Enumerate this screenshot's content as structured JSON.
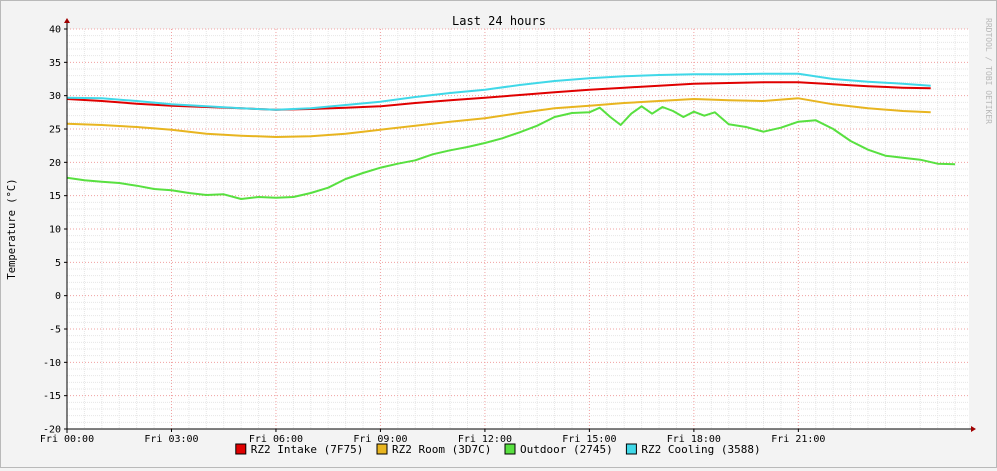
{
  "chart_data": {
    "type": "line",
    "title": "Last 24 hours",
    "ylabel": "Temperature (°C)",
    "xlabel": "",
    "watermark": "RRDTOOL / TOBI OETIKER",
    "ylim": [
      -20,
      40
    ],
    "y_ticks": [
      -20,
      -15,
      -10,
      -5,
      0,
      5,
      10,
      15,
      20,
      25,
      30,
      35,
      40
    ],
    "x_range_hours": [
      0,
      25.9
    ],
    "x_ticks": [
      {
        "h": 0,
        "label": "Fri 00:00"
      },
      {
        "h": 3,
        "label": "Fri 03:00"
      },
      {
        "h": 6,
        "label": "Fri 06:00"
      },
      {
        "h": 9,
        "label": "Fri 09:00"
      },
      {
        "h": 12,
        "label": "Fri 12:00"
      },
      {
        "h": 15,
        "label": "Fri 15:00"
      },
      {
        "h": 18,
        "label": "Fri 18:00"
      },
      {
        "h": 21,
        "label": "Fri 21:00"
      }
    ],
    "grid": true,
    "legend_position": "bottom",
    "series": [
      {
        "name": "RZ2 Intake (7F75)",
        "color": "#e00000",
        "points": [
          [
            0,
            29.5
          ],
          [
            1,
            29.2
          ],
          [
            2,
            28.8
          ],
          [
            3,
            28.5
          ],
          [
            4,
            28.3
          ],
          [
            5,
            28.1
          ],
          [
            6,
            27.9
          ],
          [
            7,
            28.0
          ],
          [
            8,
            28.2
          ],
          [
            9,
            28.4
          ],
          [
            10,
            28.9
          ],
          [
            11,
            29.3
          ],
          [
            12,
            29.7
          ],
          [
            13,
            30.1
          ],
          [
            14,
            30.5
          ],
          [
            15,
            30.9
          ],
          [
            16,
            31.2
          ],
          [
            17,
            31.5
          ],
          [
            18,
            31.8
          ],
          [
            19,
            31.9
          ],
          [
            20,
            32.0
          ],
          [
            21,
            32.0
          ],
          [
            22,
            31.7
          ],
          [
            23,
            31.4
          ],
          [
            24,
            31.2
          ],
          [
            24.8,
            31.1
          ]
        ]
      },
      {
        "name": "RZ2 Room (3D7C)",
        "color": "#e8b520",
        "points": [
          [
            0,
            25.8
          ],
          [
            1,
            25.6
          ],
          [
            2,
            25.3
          ],
          [
            3,
            24.9
          ],
          [
            4,
            24.3
          ],
          [
            5,
            24.0
          ],
          [
            6,
            23.8
          ],
          [
            7,
            23.9
          ],
          [
            8,
            24.3
          ],
          [
            9,
            24.9
          ],
          [
            10,
            25.5
          ],
          [
            11,
            26.1
          ],
          [
            12,
            26.6
          ],
          [
            13,
            27.4
          ],
          [
            14,
            28.1
          ],
          [
            15,
            28.5
          ],
          [
            16,
            28.9
          ],
          [
            17,
            29.2
          ],
          [
            18,
            29.5
          ],
          [
            19,
            29.3
          ],
          [
            20,
            29.2
          ],
          [
            21,
            29.6
          ],
          [
            22,
            28.7
          ],
          [
            23,
            28.1
          ],
          [
            24,
            27.7
          ],
          [
            24.8,
            27.5
          ]
        ]
      },
      {
        "name": "Outdoor (2745)",
        "color": "#58e040",
        "points": [
          [
            0,
            17.7
          ],
          [
            0.5,
            17.3
          ],
          [
            1,
            17.1
          ],
          [
            1.5,
            16.9
          ],
          [
            2,
            16.5
          ],
          [
            2.5,
            16.0
          ],
          [
            3,
            15.8
          ],
          [
            3.5,
            15.4
          ],
          [
            4,
            15.1
          ],
          [
            4.5,
            15.2
          ],
          [
            5,
            14.5
          ],
          [
            5.5,
            14.8
          ],
          [
            6,
            14.7
          ],
          [
            6.5,
            14.8
          ],
          [
            7,
            15.4
          ],
          [
            7.5,
            16.2
          ],
          [
            8,
            17.5
          ],
          [
            8.5,
            18.4
          ],
          [
            9,
            19.2
          ],
          [
            9.5,
            19.8
          ],
          [
            10,
            20.3
          ],
          [
            10.5,
            21.2
          ],
          [
            11,
            21.8
          ],
          [
            11.5,
            22.3
          ],
          [
            12,
            22.9
          ],
          [
            12.5,
            23.6
          ],
          [
            13,
            24.5
          ],
          [
            13.5,
            25.5
          ],
          [
            14,
            26.8
          ],
          [
            14.5,
            27.4
          ],
          [
            15,
            27.5
          ],
          [
            15.3,
            28.2
          ],
          [
            15.6,
            26.8
          ],
          [
            15.9,
            25.6
          ],
          [
            16.2,
            27.3
          ],
          [
            16.5,
            28.4
          ],
          [
            16.8,
            27.3
          ],
          [
            17.1,
            28.3
          ],
          [
            17.4,
            27.7
          ],
          [
            17.7,
            26.8
          ],
          [
            18,
            27.6
          ],
          [
            18.3,
            27.0
          ],
          [
            18.6,
            27.5
          ],
          [
            19,
            25.7
          ],
          [
            19.5,
            25.3
          ],
          [
            20,
            24.6
          ],
          [
            20.5,
            25.2
          ],
          [
            21,
            26.1
          ],
          [
            21.5,
            26.3
          ],
          [
            22,
            25.0
          ],
          [
            22.5,
            23.2
          ],
          [
            23,
            21.9
          ],
          [
            23.5,
            21.0
          ],
          [
            24,
            20.7
          ],
          [
            24.5,
            20.4
          ],
          [
            25,
            19.8
          ],
          [
            25.5,
            19.7
          ]
        ]
      },
      {
        "name": "RZ2 Cooling (3588)",
        "color": "#40d8e8",
        "points": [
          [
            0,
            29.7
          ],
          [
            1,
            29.6
          ],
          [
            2,
            29.2
          ],
          [
            3,
            28.7
          ],
          [
            4,
            28.4
          ],
          [
            5,
            28.1
          ],
          [
            6,
            27.9
          ],
          [
            7,
            28.1
          ],
          [
            8,
            28.6
          ],
          [
            9,
            29.1
          ],
          [
            10,
            29.8
          ],
          [
            11,
            30.4
          ],
          [
            12,
            30.9
          ],
          [
            13,
            31.6
          ],
          [
            14,
            32.2
          ],
          [
            15,
            32.6
          ],
          [
            16,
            32.9
          ],
          [
            17,
            33.1
          ],
          [
            18,
            33.2
          ],
          [
            19,
            33.2
          ],
          [
            20,
            33.3
          ],
          [
            21,
            33.3
          ],
          [
            22,
            32.5
          ],
          [
            23,
            32.1
          ],
          [
            24,
            31.8
          ],
          [
            24.8,
            31.5
          ]
        ]
      }
    ]
  }
}
